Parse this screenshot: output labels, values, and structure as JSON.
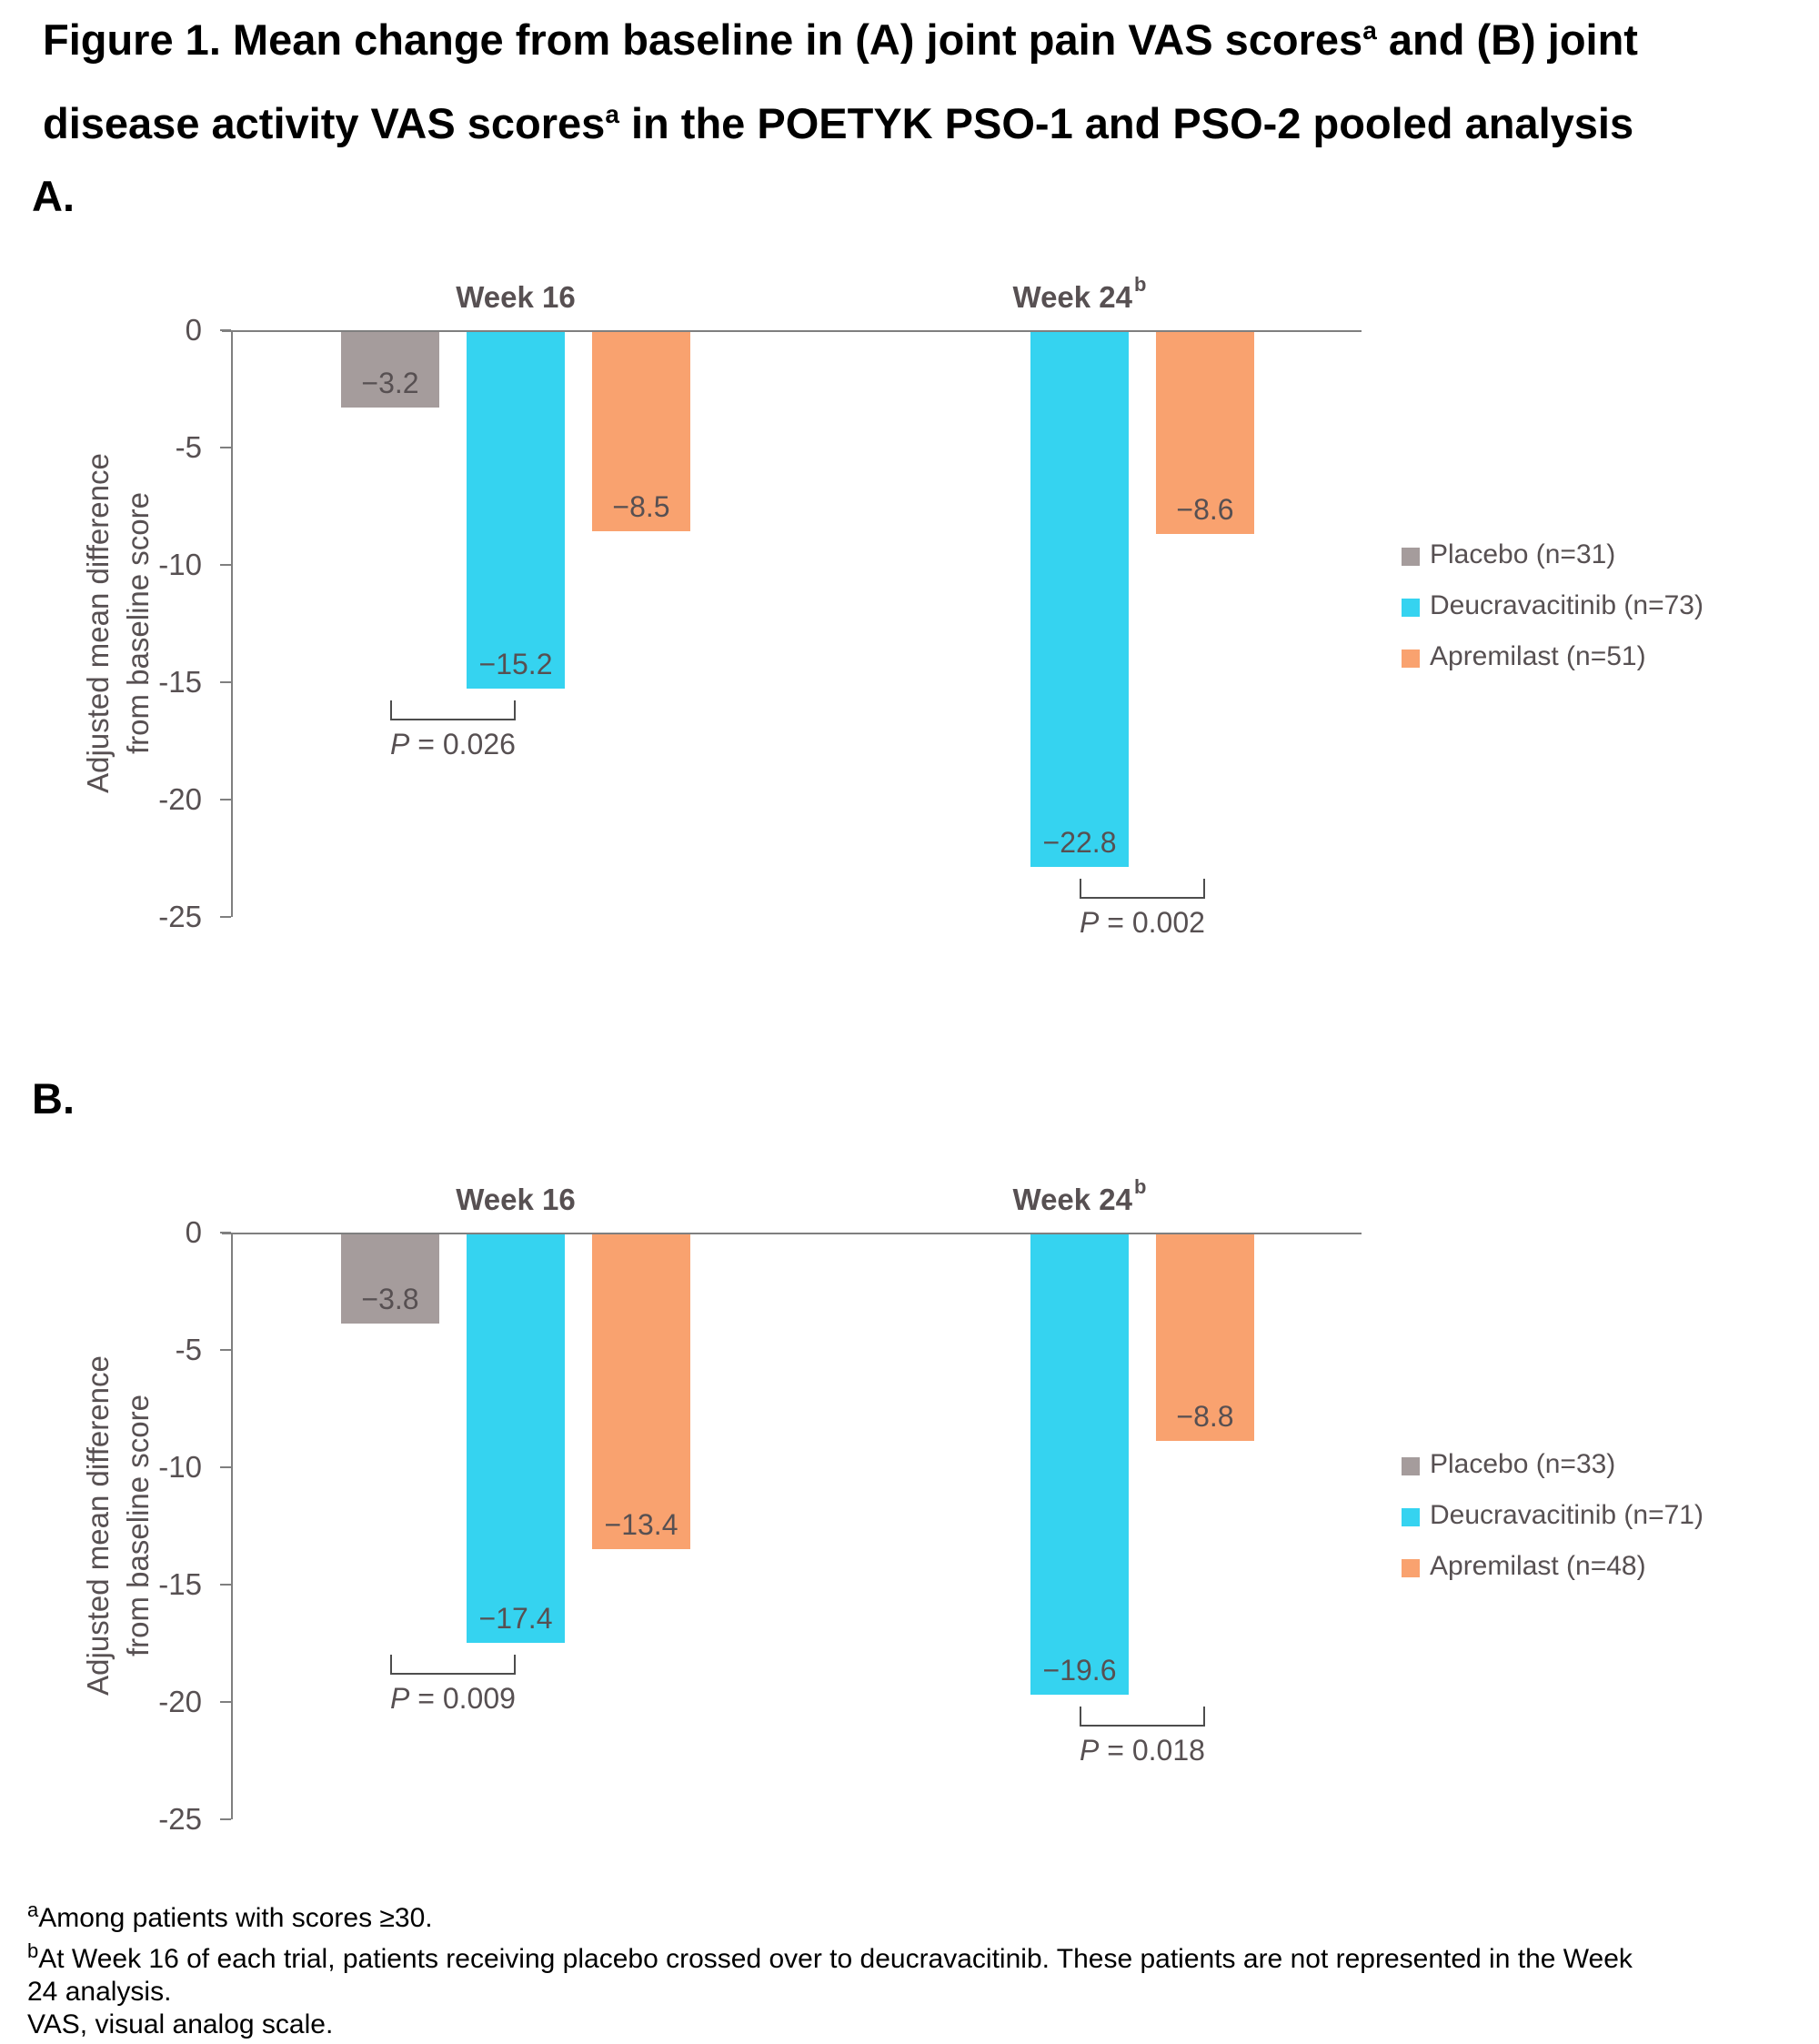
{
  "title": {
    "line1_pre": "Figure 1. Mean change from baseline in (A) joint pain VAS scores",
    "line1_sup": "a",
    "line1_post": " and (B) joint",
    "line2_pre": "disease activity VAS scores",
    "line2_sup": "a",
    "line2_post": " in the POETYK PSO-1 and PSO-2 pooled analysis"
  },
  "chart_data": [
    {
      "panel": "A.",
      "type": "bar",
      "title": "Mean change from baseline in joint pain VAS scores",
      "categories": [
        "Week 16",
        "Week 24"
      ],
      "category_sups": [
        "",
        "b"
      ],
      "series": [
        {
          "name": "Placebo (n=31)",
          "key": "placebo",
          "color": "#A59C9C",
          "values": [
            -3.2,
            null
          ]
        },
        {
          "name": "Deucravacitinib (n=73)",
          "key": "deucravacitinib",
          "color": "#35D3F0",
          "values": [
            -15.2,
            -22.8
          ]
        },
        {
          "name": "Apremilast (n=51)",
          "key": "apremilast",
          "color": "#F9A26F",
          "values": [
            -8.5,
            -8.6
          ]
        }
      ],
      "pvalues": [
        {
          "category": "Week 16",
          "text": "P = 0.026",
          "between_series": [
            0,
            1
          ]
        },
        {
          "category": "Week 24",
          "text": "P = 0.002",
          "between_series": [
            1,
            2
          ]
        }
      ],
      "ylabel_lines": [
        "Adjusted mean difference",
        "from baseline score"
      ],
      "ylim": [
        -25,
        0
      ],
      "yticks": [
        0,
        -5,
        -10,
        -15,
        -20,
        -25
      ],
      "legend_position": "right",
      "grid": false
    },
    {
      "panel": "B.",
      "type": "bar",
      "title": "Mean change from baseline in joint disease activity VAS scores",
      "categories": [
        "Week 16",
        "Week 24"
      ],
      "category_sups": [
        "",
        "b"
      ],
      "series": [
        {
          "name": "Placebo (n=33)",
          "key": "placebo",
          "color": "#A59C9C",
          "values": [
            -3.8,
            null
          ]
        },
        {
          "name": "Deucravacitinib (n=71)",
          "key": "deucravacitinib",
          "color": "#35D3F0",
          "values": [
            -17.4,
            -19.6
          ]
        },
        {
          "name": "Apremilast (n=48)",
          "key": "apremilast",
          "color": "#F9A26F",
          "values": [
            -13.4,
            -8.8
          ]
        }
      ],
      "pvalues": [
        {
          "category": "Week 16",
          "text": "P = 0.009",
          "between_series": [
            0,
            1
          ]
        },
        {
          "category": "Week 24",
          "text": "P = 0.018",
          "between_series": [
            1,
            2
          ]
        }
      ],
      "ylabel_lines": [
        "Adjusted mean difference",
        "from baseline score"
      ],
      "ylim": [
        -25,
        0
      ],
      "yticks": [
        0,
        -5,
        -10,
        -15,
        -20,
        -25
      ],
      "legend_position": "right",
      "grid": false
    }
  ],
  "footnotes": {
    "a_sup": "a",
    "a_text": "Among patients with scores ≥30.",
    "b_sup": "b",
    "b_text": "At Week 16 of each trial, patients receiving placebo crossed over to deucravacitinib. These patients are not represented in the Week 24 analysis.",
    "vas_text": "VAS, visual analog scale."
  }
}
